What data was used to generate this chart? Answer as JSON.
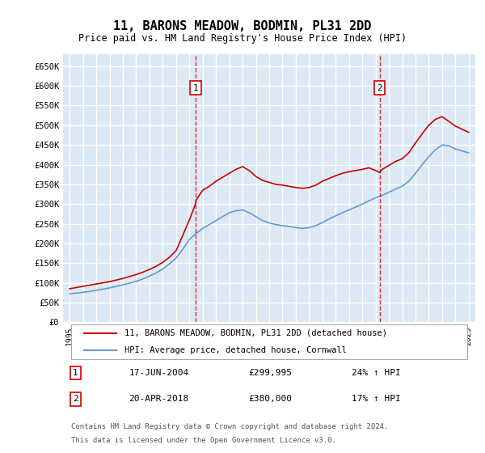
{
  "title": "11, BARONS MEADOW, BODMIN, PL31 2DD",
  "subtitle": "Price paid vs. HM Land Registry's House Price Index (HPI)",
  "title_fontsize": 13,
  "subtitle_fontsize": 10,
  "legend_label_red": "11, BARONS MEADOW, BODMIN, PL31 2DD (detached house)",
  "legend_label_blue": "HPI: Average price, detached house, Cornwall",
  "footer1": "Contains HM Land Registry data © Crown copyright and database right 2024.",
  "footer2": "This data is licensed under the Open Government Licence v3.0.",
  "sale1_label": "1",
  "sale1_date": "17-JUN-2004",
  "sale1_price": "£299,995",
  "sale1_hpi": "24% ↑ HPI",
  "sale1_x": 2004.46,
  "sale1_y": 299995,
  "sale2_label": "2",
  "sale2_date": "20-APR-2018",
  "sale2_price": "£380,000",
  "sale2_hpi": "17% ↑ HPI",
  "sale2_x": 2018.3,
  "sale2_y": 380000,
  "ylim": [
    0,
    680000
  ],
  "xlim": [
    1994.5,
    2025.5
  ],
  "yticks": [
    0,
    50000,
    100000,
    150000,
    200000,
    250000,
    300000,
    350000,
    400000,
    450000,
    500000,
    550000,
    600000,
    650000
  ],
  "xticks": [
    1995,
    1996,
    1997,
    1998,
    1999,
    2000,
    2001,
    2002,
    2003,
    2004,
    2005,
    2006,
    2007,
    2008,
    2009,
    2010,
    2011,
    2012,
    2013,
    2014,
    2015,
    2016,
    2017,
    2018,
    2019,
    2020,
    2021,
    2022,
    2023,
    2024,
    2025
  ],
  "bg_color": "#dce9f5",
  "grid_color": "#ffffff",
  "red_color": "#cc0000",
  "blue_color": "#6699cc",
  "red_x": [
    1995.0,
    1995.5,
    1996.0,
    1996.5,
    1997.0,
    1997.5,
    1998.0,
    1998.5,
    1999.0,
    1999.5,
    2000.0,
    2000.5,
    2001.0,
    2001.5,
    2002.0,
    2002.5,
    2003.0,
    2003.5,
    2004.0,
    2004.46,
    2004.5,
    2005.0,
    2005.5,
    2006.0,
    2006.5,
    2007.0,
    2007.5,
    2008.0,
    2008.5,
    2009.0,
    2009.5,
    2010.0,
    2010.5,
    2011.0,
    2011.5,
    2012.0,
    2012.5,
    2013.0,
    2013.5,
    2014.0,
    2014.5,
    2015.0,
    2015.5,
    2016.0,
    2016.5,
    2017.0,
    2017.5,
    2018.0,
    2018.3,
    2018.5,
    2019.0,
    2019.5,
    2020.0,
    2020.5,
    2021.0,
    2021.5,
    2022.0,
    2022.5,
    2023.0,
    2023.5,
    2024.0,
    2024.5,
    2025.0
  ],
  "red_y": [
    85000,
    88000,
    91000,
    94000,
    97000,
    100000,
    103000,
    107000,
    111000,
    116000,
    121000,
    127000,
    134000,
    142000,
    152000,
    165000,
    182000,
    220000,
    260000,
    299995,
    310000,
    335000,
    345000,
    358000,
    368000,
    378000,
    388000,
    395000,
    385000,
    370000,
    360000,
    355000,
    350000,
    348000,
    345000,
    342000,
    340000,
    342000,
    348000,
    358000,
    365000,
    372000,
    378000,
    382000,
    385000,
    388000,
    392000,
    385000,
    380000,
    388000,
    398000,
    408000,
    415000,
    430000,
    455000,
    478000,
    500000,
    515000,
    522000,
    510000,
    498000,
    490000,
    482000
  ],
  "blue_x": [
    1995.0,
    1995.5,
    1996.0,
    1996.5,
    1997.0,
    1997.5,
    1998.0,
    1998.5,
    1999.0,
    1999.5,
    2000.0,
    2000.5,
    2001.0,
    2001.5,
    2002.0,
    2002.5,
    2003.0,
    2003.5,
    2004.0,
    2004.5,
    2005.0,
    2005.5,
    2006.0,
    2006.5,
    2007.0,
    2007.5,
    2008.0,
    2008.5,
    2009.0,
    2009.5,
    2010.0,
    2010.5,
    2011.0,
    2011.5,
    2012.0,
    2012.5,
    2013.0,
    2013.5,
    2014.0,
    2014.5,
    2015.0,
    2015.5,
    2016.0,
    2016.5,
    2017.0,
    2017.5,
    2018.0,
    2018.5,
    2019.0,
    2019.5,
    2020.0,
    2020.5,
    2021.0,
    2021.5,
    2022.0,
    2022.5,
    2023.0,
    2023.5,
    2024.0,
    2024.5,
    2025.0
  ],
  "blue_y": [
    72000,
    74000,
    76000,
    78000,
    81000,
    84000,
    87000,
    91000,
    95000,
    99000,
    104000,
    110000,
    117000,
    125000,
    135000,
    148000,
    163000,
    185000,
    210000,
    225000,
    238000,
    248000,
    258000,
    268000,
    278000,
    283000,
    285000,
    278000,
    268000,
    258000,
    252000,
    248000,
    245000,
    243000,
    240000,
    238000,
    240000,
    245000,
    253000,
    262000,
    270000,
    278000,
    285000,
    292000,
    300000,
    308000,
    316000,
    322000,
    330000,
    338000,
    345000,
    358000,
    378000,
    400000,
    420000,
    438000,
    450000,
    448000,
    440000,
    435000,
    430000
  ]
}
